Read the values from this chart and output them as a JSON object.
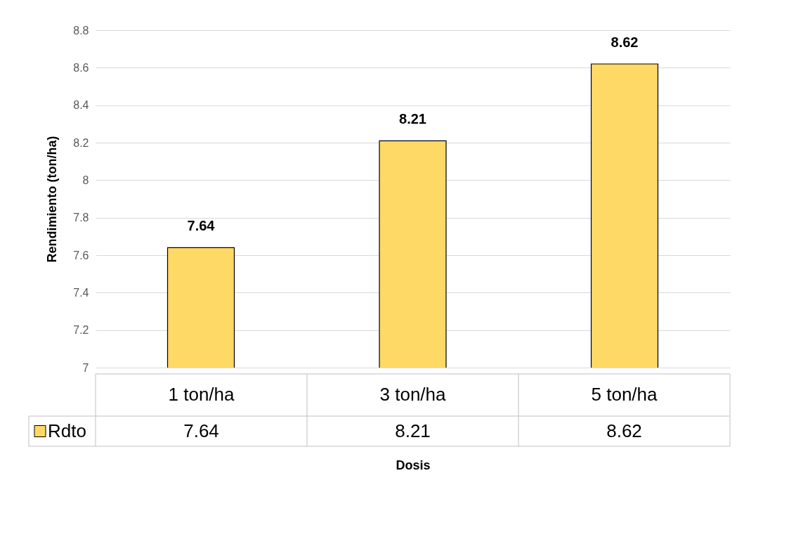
{
  "chart_data": {
    "type": "bar",
    "xlabel": "Dosis",
    "ylabel": "Rendimiento (ton/ha)",
    "categories": [
      "1 ton/ha",
      "3 ton/ha",
      "5 ton/ha"
    ],
    "series": [
      {
        "name": "Rdto",
        "color": "#ffd966",
        "values": [
          7.64,
          8.21,
          8.62
        ],
        "value_labels": [
          "7.64",
          "8.21",
          "8.62"
        ]
      }
    ],
    "ylim": [
      7,
      8.8
    ],
    "yticks": [
      7,
      7.2,
      7.4,
      7.6,
      7.8,
      8,
      8.2,
      8.4,
      8.6,
      8.8
    ],
    "grid": "y"
  }
}
